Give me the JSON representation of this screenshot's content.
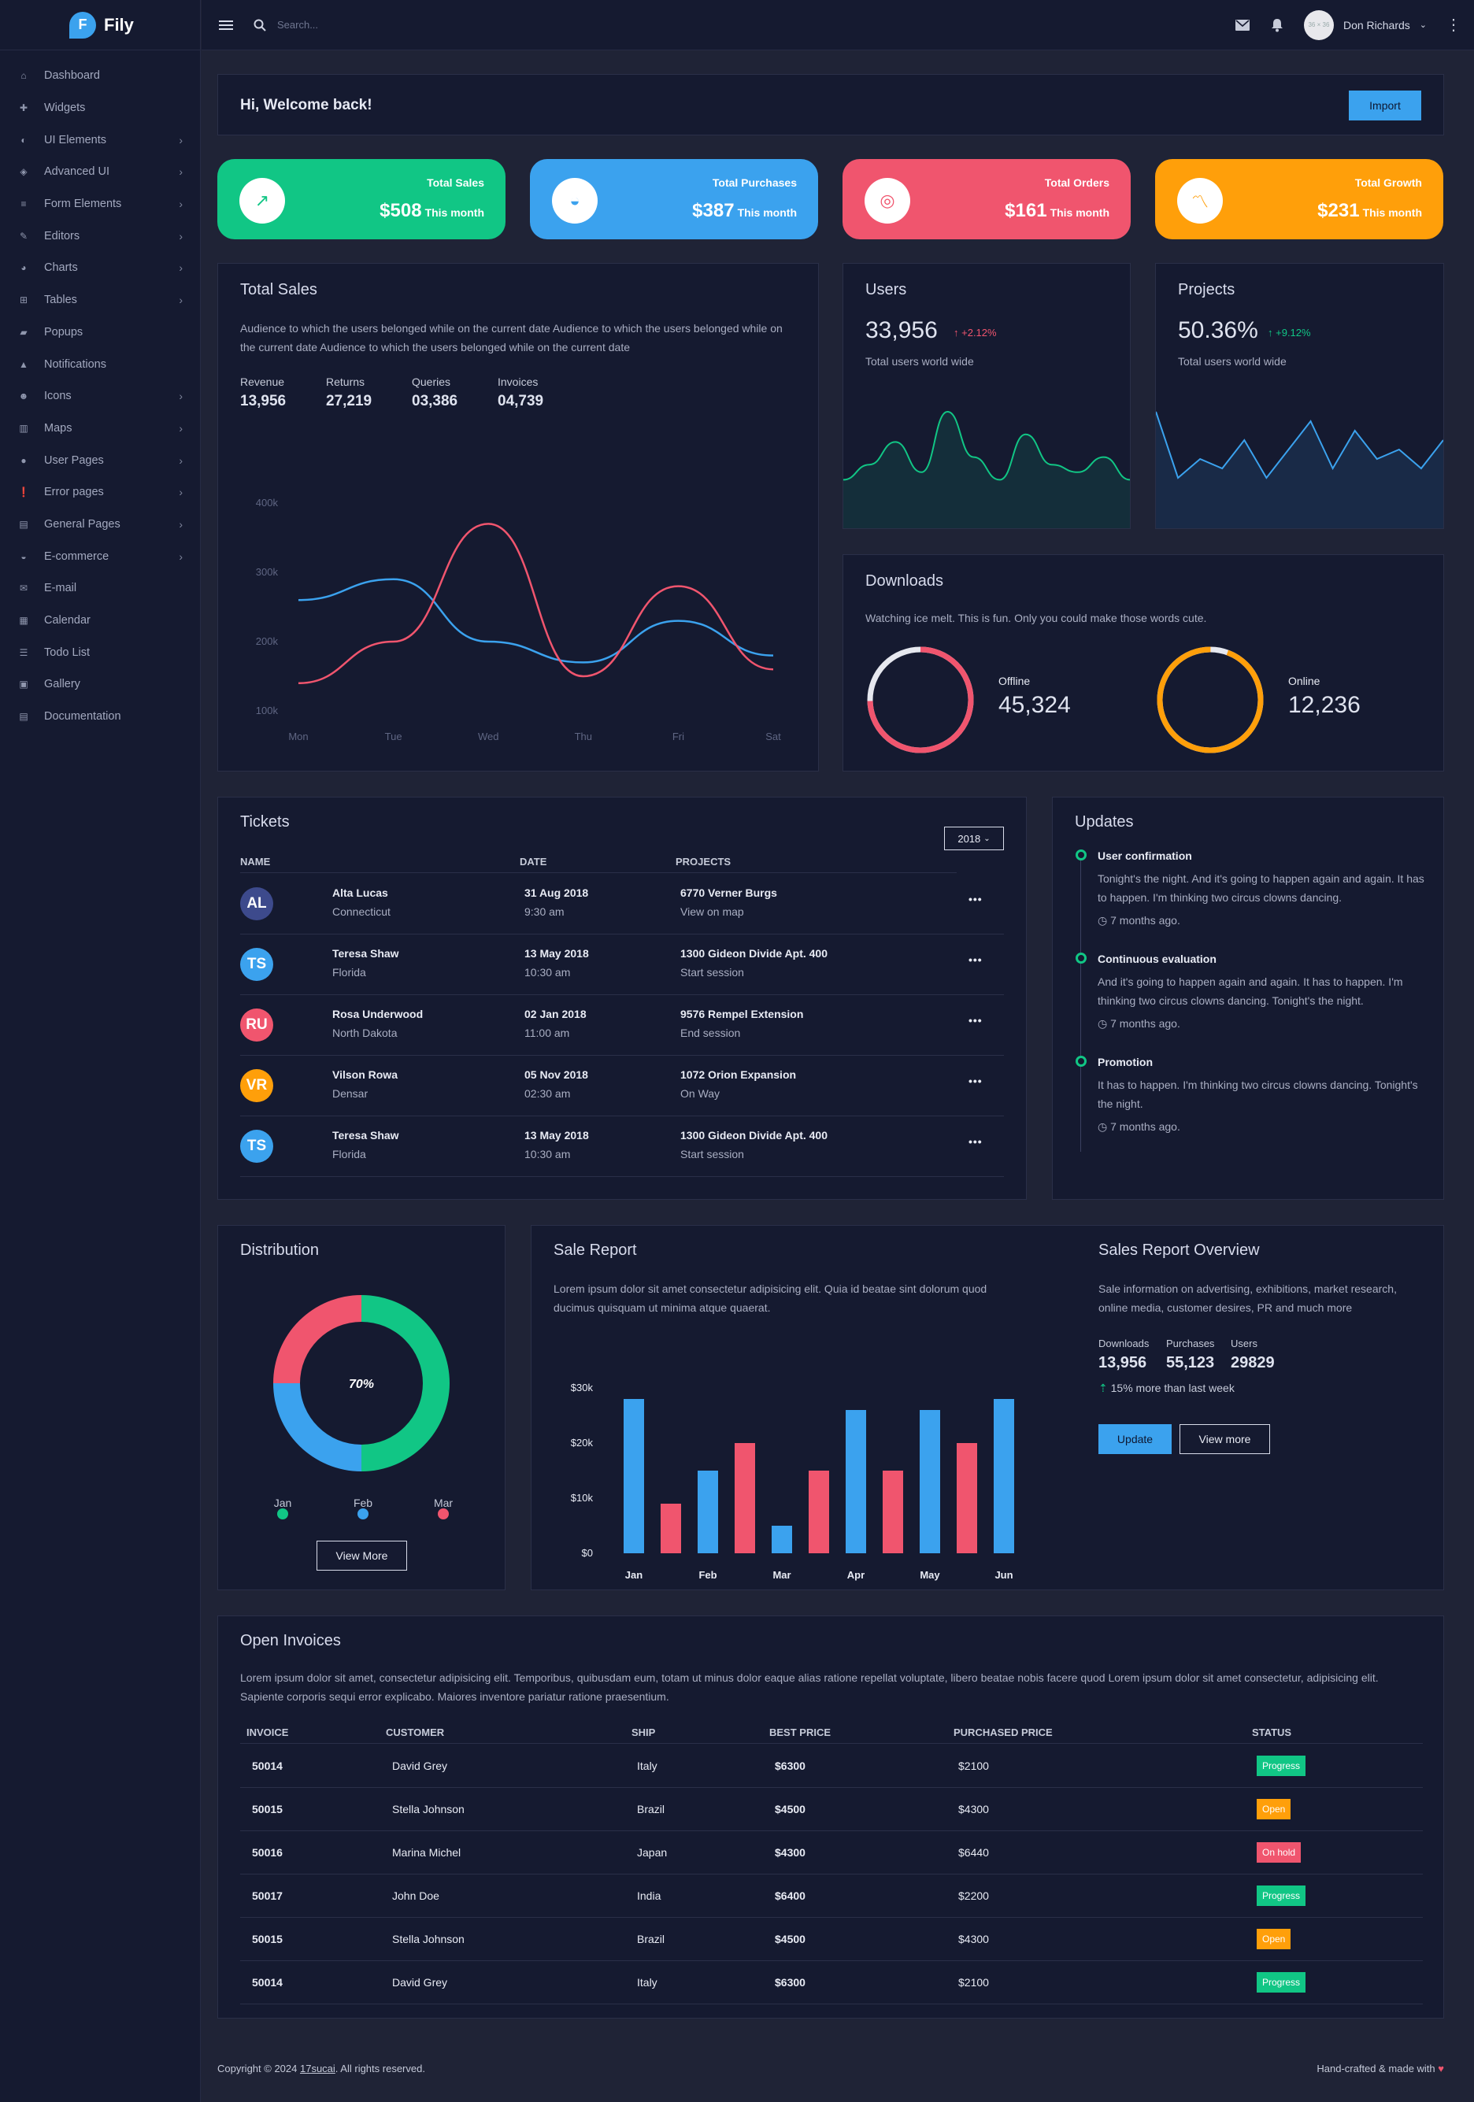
{
  "brand": {
    "name": "Fily",
    "logo_letter": "F"
  },
  "sidebar": {
    "items": [
      {
        "label": "Dashboard",
        "icon": "home-icon",
        "chevron": false
      },
      {
        "label": "Widgets",
        "icon": "puzzle-icon",
        "chevron": false
      },
      {
        "label": "UI Elements",
        "icon": "palette-icon",
        "chevron": true
      },
      {
        "label": "Advanced UI",
        "icon": "layers-icon",
        "chevron": true
      },
      {
        "label": "Form Elements",
        "icon": "list-icon",
        "chevron": true
      },
      {
        "label": "Editors",
        "icon": "edit-icon",
        "chevron": true
      },
      {
        "label": "Charts",
        "icon": "pie-chart-icon",
        "chevron": true
      },
      {
        "label": "Tables",
        "icon": "table-icon",
        "chevron": true
      },
      {
        "label": "Popups",
        "icon": "chat-icon",
        "chevron": false
      },
      {
        "label": "Notifications",
        "icon": "bell-icon",
        "chevron": false
      },
      {
        "label": "Icons",
        "icon": "smile-icon",
        "chevron": true
      },
      {
        "label": "Maps",
        "icon": "map-icon",
        "chevron": true
      },
      {
        "label": "User Pages",
        "icon": "user-icon",
        "chevron": true
      },
      {
        "label": "Error pages",
        "icon": "alert-icon",
        "chevron": true
      },
      {
        "label": "General Pages",
        "icon": "file-icon",
        "chevron": true
      },
      {
        "label": "E-commerce",
        "icon": "basket-icon",
        "chevron": true
      },
      {
        "label": "E-mail",
        "icon": "mail-icon",
        "chevron": false
      },
      {
        "label": "Calendar",
        "icon": "calendar-icon",
        "chevron": false
      },
      {
        "label": "Todo List",
        "icon": "checklist-icon",
        "chevron": false
      },
      {
        "label": "Gallery",
        "icon": "image-icon",
        "chevron": false
      },
      {
        "label": "Documentation",
        "icon": "doc-icon",
        "chevron": false
      }
    ]
  },
  "topbar": {
    "search_placeholder": "Search...",
    "user_name": "Don Richards",
    "avatar_text": "36 × 36"
  },
  "welcome": {
    "title": "Hi, Welcome back!",
    "button": "Import"
  },
  "stats": [
    {
      "label": "Total Sales",
      "value": "$508",
      "suffix": "This month",
      "color": "#11c685",
      "icon": "arrow-up-right-icon"
    },
    {
      "label": "Total Purchases",
      "value": "$387",
      "suffix": "This month",
      "color": "#3ba2ee",
      "icon": "basket-icon"
    },
    {
      "label": "Total Orders",
      "value": "$161",
      "suffix": "This month",
      "color": "#f0556e",
      "icon": "target-icon"
    },
    {
      "label": "Total Growth",
      "value": "$231",
      "suffix": "This month",
      "color": "#ff9f0a",
      "icon": "trend-icon"
    }
  ],
  "total_sales": {
    "title": "Total Sales",
    "description": "Audience to which the users belonged while on the current date Audience to which the users belonged while on the current date Audience to which the users belonged while on the current date",
    "kpis": [
      {
        "label": "Revenue",
        "value": "13,956"
      },
      {
        "label": "Returns",
        "value": "27,219"
      },
      {
        "label": "Queries",
        "value": "03,386"
      },
      {
        "label": "Invoices",
        "value": "04,739"
      }
    ]
  },
  "chart_data": [
    {
      "type": "line",
      "title": "Total Sales",
      "x": [
        "Mon",
        "Tue",
        "Wed",
        "Thu",
        "Fri",
        "Sat"
      ],
      "ylim": [
        100000,
        400000
      ],
      "yticks": [
        "400k",
        "300k",
        "200k",
        "100k"
      ],
      "series": [
        {
          "color": "#3ba2ee",
          "values": [
            260000,
            290000,
            200000,
            170000,
            230000,
            180000
          ]
        },
        {
          "color": "#f0556e",
          "values": [
            140000,
            200000,
            370000,
            150000,
            280000,
            160000
          ]
        }
      ]
    },
    {
      "type": "area",
      "title": "Users",
      "series": [
        {
          "color": "#11c685",
          "values": [
            30,
            40,
            55,
            35,
            75,
            45,
            30,
            60,
            40,
            35,
            45,
            30
          ]
        }
      ]
    },
    {
      "type": "area",
      "title": "Projects",
      "series": [
        {
          "color": "#3ba2ee",
          "values": [
            60,
            25,
            35,
            30,
            45,
            25,
            40,
            55,
            30,
            50,
            35,
            40,
            30,
            45
          ]
        }
      ]
    },
    {
      "type": "pie",
      "title": "Distribution",
      "categories": [
        "Jan",
        "Feb",
        "Mar"
      ],
      "values": [
        50,
        25,
        25
      ],
      "colors": [
        "#11c685",
        "#3ba2ee",
        "#f0556e"
      ],
      "center_label": "70%"
    },
    {
      "type": "bar",
      "title": "Sale Report",
      "categories": [
        "Jan",
        "Feb",
        "Mar",
        "Apr",
        "May",
        "Jun"
      ],
      "ylim": [
        0,
        30000
      ],
      "yticks": [
        "$30k",
        "$20k",
        "$10k",
        "$0"
      ],
      "series": [
        {
          "color": "#3ba2ee",
          "values": [
            28000,
            15000,
            5000,
            26000,
            26000,
            28000
          ]
        },
        {
          "color": "#f0556e",
          "values": [
            9000,
            20000,
            15000,
            15000,
            20000,
            0
          ]
        }
      ]
    }
  ],
  "users": {
    "title": "Users",
    "value": "33,956",
    "change": "+2.12%",
    "caption": "Total users world wide"
  },
  "projects": {
    "title": "Projects",
    "value": "50.36%",
    "change": "+9.12%",
    "caption": "Total users world wide"
  },
  "downloads": {
    "title": "Downloads",
    "description": "Watching ice melt. This is fun. Only you could make those words cute.",
    "offline": {
      "label": "Offline",
      "value": "45,324",
      "color": "#f0556e"
    },
    "online": {
      "label": "Online",
      "value": "12,236",
      "color": "#ff9f0a"
    }
  },
  "tickets": {
    "title": "Tickets",
    "year": "2018",
    "headers": {
      "name": "NAME",
      "date": "DATE",
      "projects": "PROJECTS"
    },
    "rows": [
      {
        "initials": "AL",
        "color": "#3d4a8c",
        "name": "Alta Lucas",
        "place": "Connecticut",
        "date": "31 Aug 2018",
        "time": "9:30 am",
        "project": "6770 Verner Burgs",
        "action": "View on map"
      },
      {
        "initials": "TS",
        "color": "#3ba2ee",
        "name": "Teresa Shaw",
        "place": "Florida",
        "date": "13 May 2018",
        "time": "10:30 am",
        "project": "1300 Gideon Divide Apt. 400",
        "action": "Start session"
      },
      {
        "initials": "RU",
        "color": "#f0556e",
        "name": "Rosa Underwood",
        "place": "North Dakota",
        "date": "02 Jan 2018",
        "time": "11:00 am",
        "project": "9576 Rempel Extension",
        "action": "End session"
      },
      {
        "initials": "VR",
        "color": "#ff9f0a",
        "name": "Vilson Rowa",
        "place": "Densar",
        "date": "05 Nov 2018",
        "time": "02:30 am",
        "project": "1072 Orion Expansion",
        "action": "On Way"
      },
      {
        "initials": "TS",
        "color": "#3ba2ee",
        "name": "Teresa Shaw",
        "place": "Florida",
        "date": "13 May 2018",
        "time": "10:30 am",
        "project": "1300 Gideon Divide Apt. 400",
        "action": "Start session"
      }
    ]
  },
  "updates": {
    "title": "Updates",
    "items": [
      {
        "title": "User confirmation",
        "text": "Tonight's the night. And it's going to happen again and again. It has to happen. I'm thinking two circus clowns dancing.",
        "time": "7 months ago."
      },
      {
        "title": "Continuous evaluation",
        "text": "And it's going to happen again and again. It has to happen. I'm thinking two circus clowns dancing. Tonight's the night.",
        "time": "7 months ago."
      },
      {
        "title": "Promotion",
        "text": "It has to happen. I'm thinking two circus clowns dancing. Tonight's the night.",
        "time": "7 months ago."
      }
    ]
  },
  "distribution": {
    "title": "Distribution",
    "center": "70%",
    "legend": [
      "Jan",
      "Feb",
      "Mar"
    ],
    "button": "View More"
  },
  "sale_report": {
    "title": "Sale Report",
    "description": "Lorem ipsum dolor sit amet consectetur adipisicing elit. Quia id beatae sint dolorum quod ducimus quisquam ut minima atque quaerat."
  },
  "sales_overview": {
    "title": "Sales Report Overview",
    "description": "Sale information on advertising, exhibitions, market research, online media, customer desires, PR and much more",
    "stats": [
      {
        "label": "Downloads",
        "value": "13,956"
      },
      {
        "label": "Purchases",
        "value": "55,123"
      },
      {
        "label": "Users",
        "value": "29829"
      }
    ],
    "note": "15% more than last week",
    "update_button": "Update",
    "more_button": "View more"
  },
  "invoices": {
    "title": "Open Invoices",
    "description": "Lorem ipsum dolor sit amet, consectetur adipisicing elit. Temporibus, quibusdam eum, totam ut minus dolor eaque alias ratione repellat voluptate, libero beatae nobis facere quod Lorem ipsum dolor sit amet consectetur, adipisicing elit. Sapiente corporis sequi error explicabo. Maiores inventore pariatur ratione praesentium.",
    "headers": [
      "INVOICE",
      "CUSTOMER",
      "SHIP",
      "BEST PRICE",
      "PURCHASED PRICE",
      "STATUS"
    ],
    "rows": [
      {
        "id": "50014",
        "customer": "David Grey",
        "ship": "Italy",
        "best": "$6300",
        "purchased": "$2100",
        "status": "Progress",
        "status_color": "#11c685"
      },
      {
        "id": "50015",
        "customer": "Stella Johnson",
        "ship": "Brazil",
        "best": "$4500",
        "purchased": "$4300",
        "status": "Open",
        "status_color": "#ff9f0a"
      },
      {
        "id": "50016",
        "customer": "Marina Michel",
        "ship": "Japan",
        "best": "$4300",
        "purchased": "$6440",
        "status": "On hold",
        "status_color": "#f0556e"
      },
      {
        "id": "50017",
        "customer": "John Doe",
        "ship": "India",
        "best": "$6400",
        "purchased": "$2200",
        "status": "Progress",
        "status_color": "#11c685"
      },
      {
        "id": "50015",
        "customer": "Stella Johnson",
        "ship": "Brazil",
        "best": "$4500",
        "purchased": "$4300",
        "status": "Open",
        "status_color": "#ff9f0a"
      },
      {
        "id": "50014",
        "customer": "David Grey",
        "ship": "Italy",
        "best": "$6300",
        "purchased": "$2100",
        "status": "Progress",
        "status_color": "#11c685"
      }
    ]
  },
  "footer": {
    "copyright": "Copyright © 2024",
    "link": "17sucai",
    "rights": ". All rights reserved.",
    "right": "Hand-crafted & made with"
  }
}
